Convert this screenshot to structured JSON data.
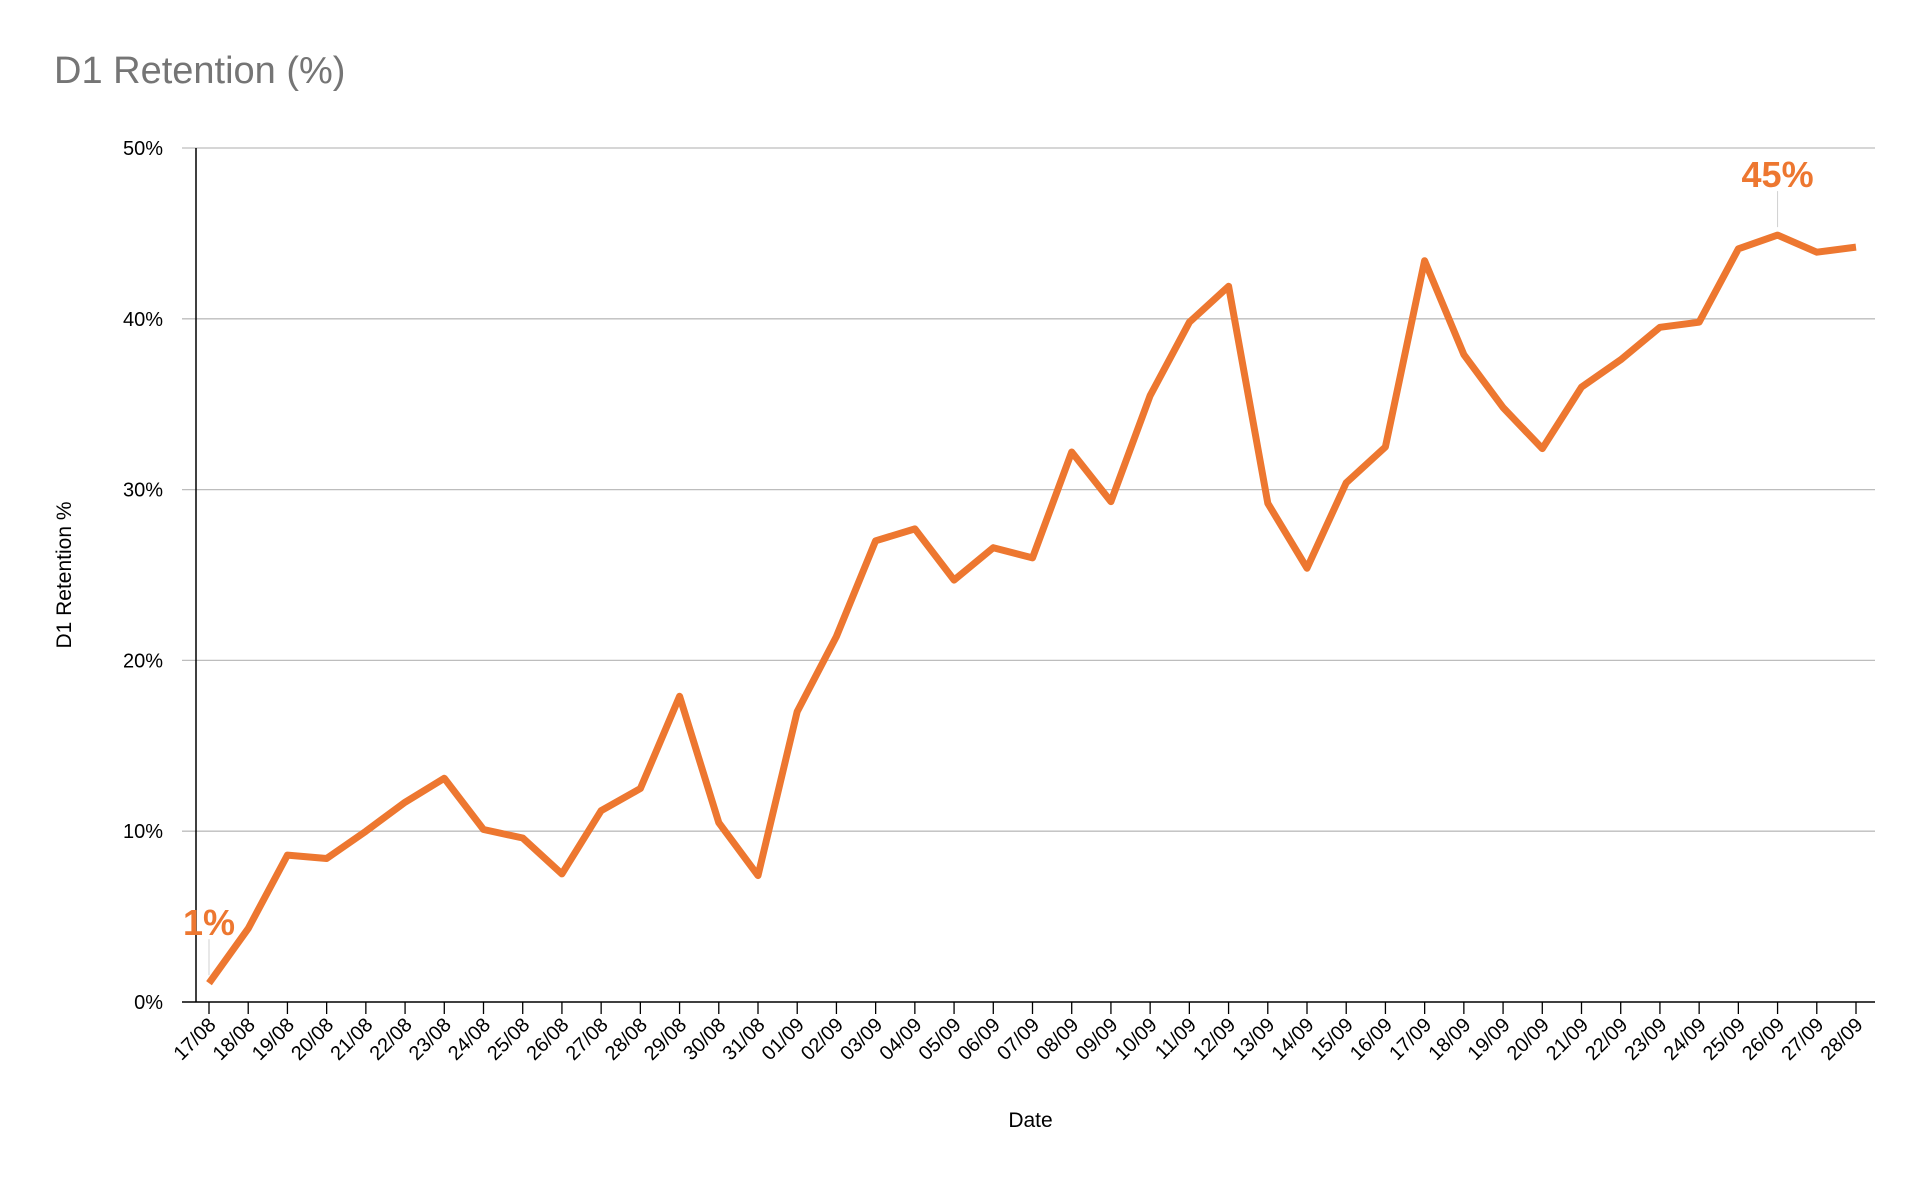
{
  "chart_data": {
    "type": "line",
    "title": "D1 Retention (%)",
    "xlabel": "Date",
    "ylabel": "D1 Retention %",
    "ylim": [
      0,
      50
    ],
    "yticks": [
      0,
      10,
      20,
      30,
      40,
      50
    ],
    "ytick_labels": [
      "0%",
      "10%",
      "20%",
      "30%",
      "40%",
      "50%"
    ],
    "grid": true,
    "line_color": "#ED7730",
    "gridline_color": "#BDBDBD",
    "title_color": "#757575",
    "x": [
      "17/08",
      "18/08",
      "19/08",
      "20/08",
      "21/08",
      "22/08",
      "23/08",
      "24/08",
      "25/08",
      "26/08",
      "27/08",
      "28/08",
      "29/08",
      "30/08",
      "31/08",
      "01/09",
      "02/09",
      "03/09",
      "04/09",
      "05/09",
      "06/09",
      "07/09",
      "08/09",
      "09/09",
      "10/09",
      "11/09",
      "12/09",
      "13/09",
      "14/09",
      "15/09",
      "16/09",
      "17/09",
      "18/09",
      "19/09",
      "20/09",
      "21/09",
      "22/09",
      "23/09",
      "24/09",
      "25/09",
      "26/09",
      "27/09",
      "28/09"
    ],
    "series": [
      {
        "values": [
          1.1,
          4.3,
          8.6,
          8.4,
          10.0,
          11.7,
          13.1,
          10.1,
          9.6,
          7.5,
          11.2,
          12.5,
          17.9,
          10.5,
          7.4,
          17.0,
          21.4,
          27.0,
          27.7,
          24.7,
          26.6,
          26.0,
          32.2,
          29.3,
          35.5,
          39.8,
          41.9,
          29.2,
          25.4,
          30.4,
          32.5,
          43.4,
          37.9,
          34.8,
          32.4,
          36.0,
          37.6,
          39.5,
          39.8,
          44.1,
          44.9,
          43.9,
          44.2
        ]
      }
    ],
    "annotations": [
      {
        "index": 0,
        "text": "1%"
      },
      {
        "index": 40,
        "text": "45%"
      }
    ]
  }
}
